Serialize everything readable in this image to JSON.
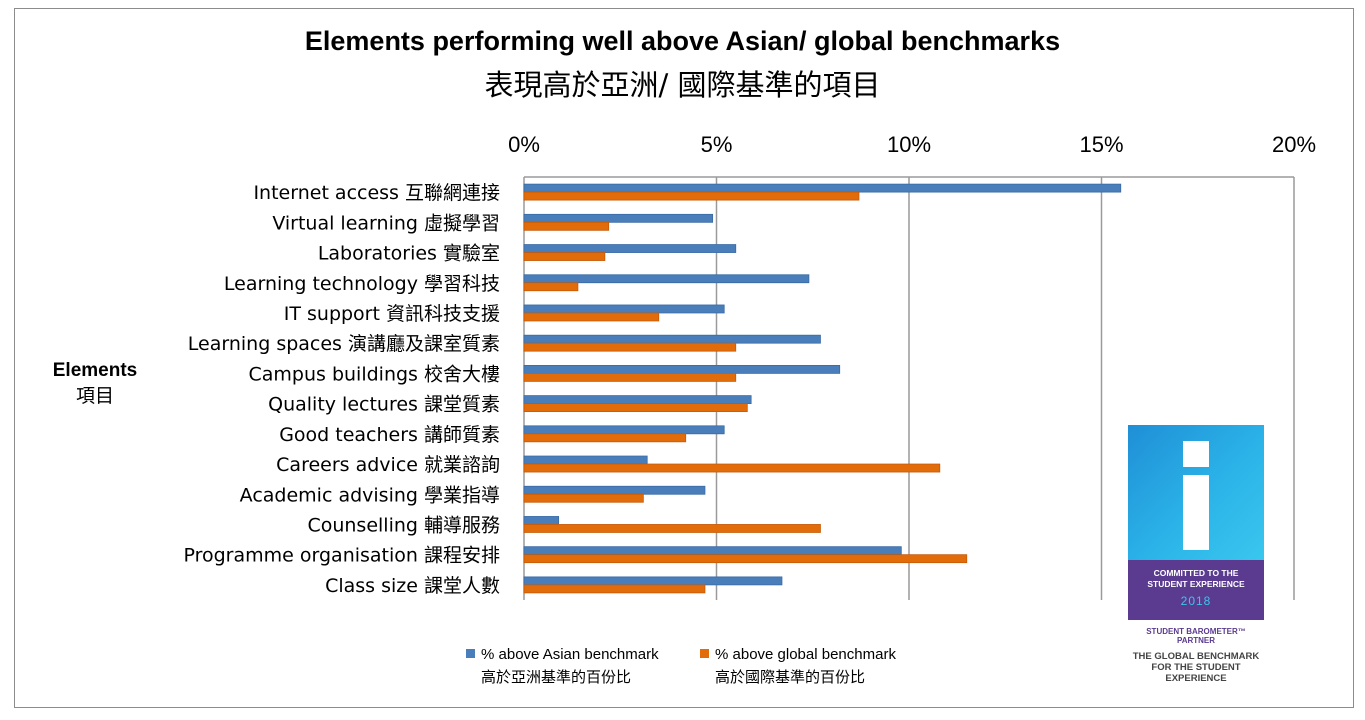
{
  "chart_data": {
    "type": "bar",
    "orientation": "horizontal",
    "title": "Elements performing well above Asian/ global benchmarks",
    "subtitle": "表現高於亞洲/ 國際基準的項目",
    "ylabel_en": "Elements",
    "ylabel_zh": "項目",
    "xlim": [
      0,
      20
    ],
    "xticks": [
      "0%",
      "5%",
      "10%",
      "15%",
      "20%"
    ],
    "grid": true,
    "legend_position": "bottom",
    "categories": [
      "Internet access 互聯網連接",
      "Virtual learning 虛擬學習",
      "Laboratories 實驗室",
      "Learning technology 學習科技",
      "IT support 資訊科技支援",
      "Learning spaces 演講廳及課室質素",
      "Campus buildings 校舍大樓",
      "Quality lectures 課堂質素",
      "Good teachers 講師質素",
      "Careers advice 就業諮詢",
      "Academic advising 學業指導",
      "Counselling 輔導服務",
      "Programme organisation 課程安排",
      "Class size 課堂人數"
    ],
    "series": [
      {
        "name": "% above Asian benchmark",
        "name_zh": "高於亞洲基準的百份比",
        "color": "#4a7ebb",
        "values": [
          15.5,
          4.9,
          5.5,
          7.4,
          5.2,
          7.7,
          8.2,
          5.9,
          5.2,
          3.2,
          4.7,
          0.9,
          9.8,
          6.7
        ]
      },
      {
        "name": "% above global benchmark",
        "name_zh": "高於國際基準的百份比",
        "color": "#e36c0a",
        "values": [
          8.7,
          2.2,
          2.1,
          1.4,
          3.5,
          5.5,
          5.5,
          5.8,
          4.2,
          10.8,
          3.1,
          7.7,
          11.5,
          4.7
        ]
      }
    ]
  },
  "badge": {
    "commit_line1": "COMMITTED TO THE",
    "commit_line2": "STUDENT EXPERIENCE",
    "year": "2018",
    "partner": "STUDENT BAROMETER™ PARTNER",
    "global_line1": "THE GLOBAL BENCHMARK",
    "global_line2": "FOR THE STUDENT EXPERIENCE"
  }
}
